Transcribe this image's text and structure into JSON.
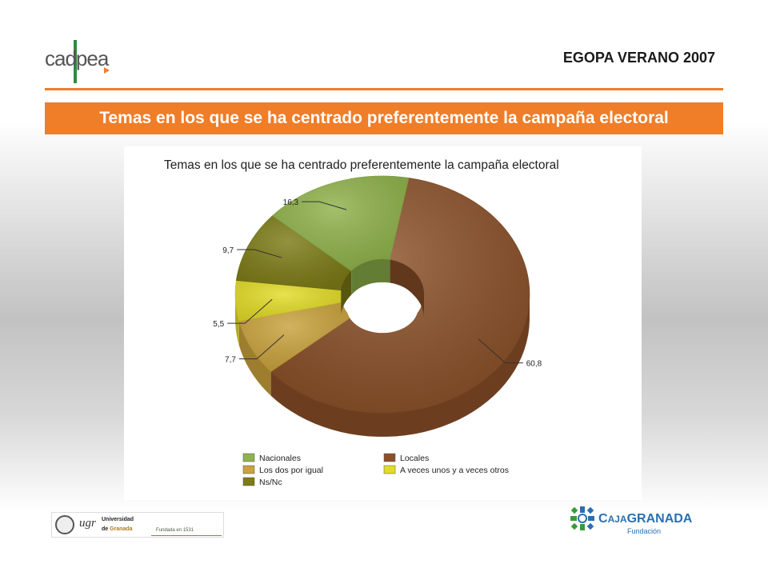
{
  "header": {
    "logo_text": "cadpea",
    "survey_title": "EGOPA VERANO 2007"
  },
  "banner": {
    "title": "Temas en los que se ha centrado preferentemente la campaña electoral"
  },
  "chart_data": {
    "type": "pie",
    "variant": "3d-donut",
    "title": "Temas en los que se ha centrado preferentemente la campaña electoral",
    "unit": "%",
    "legend_position": "bottom",
    "slices": [
      {
        "label": "Locales",
        "value": 60.8,
        "value_label": "60,8",
        "color": "#8a5028"
      },
      {
        "label": "Los dos por igual",
        "value": 7.7,
        "value_label": "7,7",
        "color": "#c9a23c"
      },
      {
        "label": "A veces unos y a veces otros",
        "value": 5.5,
        "value_label": "5,5",
        "color": "#e3dc27"
      },
      {
        "label": "Ns/Nc",
        "value": 9.7,
        "value_label": "9,7",
        "color": "#7c7b16"
      },
      {
        "label": "Nacionales",
        "value": 16.3,
        "value_label": "16,3",
        "color": "#8fb24a"
      }
    ],
    "legend": [
      {
        "label": "Nacionales",
        "color": "#8fb24a"
      },
      {
        "label": "Locales",
        "color": "#8a5028"
      },
      {
        "label": "Los dos por igual",
        "color": "#c9a23c"
      },
      {
        "label": "A veces unos y a veces otros",
        "color": "#e3dc27"
      },
      {
        "label": "Ns/Nc",
        "color": "#7c7b16"
      }
    ]
  },
  "footer": {
    "ugr_mark": "ugr",
    "university_name_1": "Universidad",
    "university_name_2_prefix": "de",
    "university_name_2_city": "Granada",
    "university_founded": "Fundada en 1531",
    "caja_brand_prefix": "C",
    "caja_brand_small": "AJA",
    "caja_brand_main": "GRANADA",
    "caja_sub": "Fundación"
  }
}
